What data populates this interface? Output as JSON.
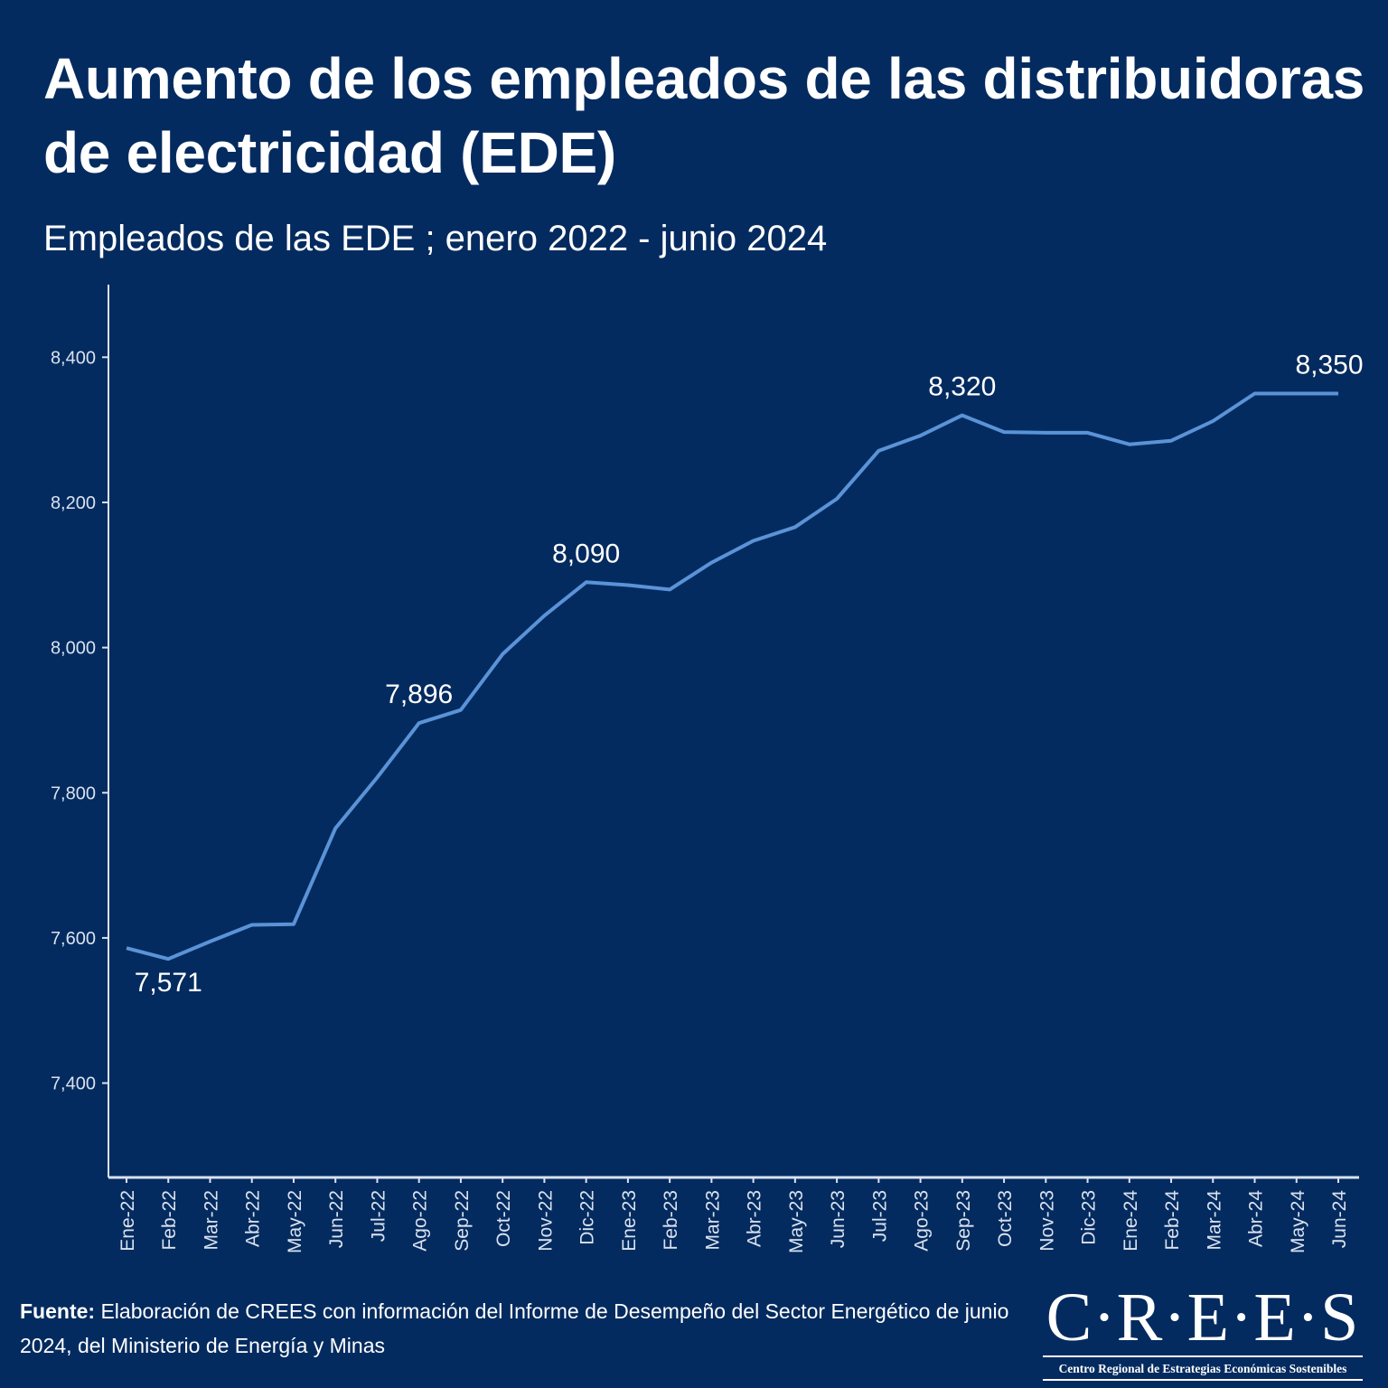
{
  "header": {
    "title": "Aumento de los empleados de las distribuidoras de electricidad (EDE)",
    "subtitle": "Empleados de las EDE ; enero 2022 - junio 2024"
  },
  "colors": {
    "background": "#042b5f",
    "line": "#5b93d8",
    "text": "#ffffff",
    "axis": "#d9e2ef"
  },
  "chart_data": {
    "type": "line",
    "title": "Aumento de los empleados de las distribuidoras de electricidad (EDE)",
    "subtitle": "Empleados de las EDE ; enero 2022 - junio 2024",
    "xlabel": "",
    "ylabel": "",
    "ylim": [
      7270,
      8500
    ],
    "yticks": [
      7400,
      7600,
      7800,
      8000,
      8200,
      8400
    ],
    "ytick_labels": [
      "7,400",
      "7,600",
      "7,800",
      "8,000",
      "8,200",
      "8,400"
    ],
    "grid": false,
    "legend": "none",
    "categories": [
      "Ene-22",
      "Feb-22",
      "Mar-22",
      "Abr-22",
      "May-22",
      "Jun-22",
      "Jul-22",
      "Ago-22",
      "Sep-22",
      "Oct-22",
      "Nov-22",
      "Dic-22",
      "Ene-23",
      "Feb-23",
      "Mar-23",
      "Abr-23",
      "May-23",
      "Jun-23",
      "Jul-23",
      "Ago-23",
      "Sep-23",
      "Oct-23",
      "Nov-23",
      "Dic-23",
      "Ene-24",
      "Feb-24",
      "Mar-24",
      "Abr-24",
      "May-24",
      "Jun-24"
    ],
    "series": [
      {
        "name": "Empleados de las EDE",
        "values": [
          7586,
          7571,
          7595,
          7618,
          7619,
          7751,
          7821,
          7896,
          7914,
          7991,
          8044,
          8090,
          8086,
          8080,
          8117,
          8147,
          8166,
          8205,
          8271,
          8292,
          8320,
          8297,
          8296,
          8296,
          8280,
          8285,
          8312,
          8350,
          8350,
          8350
        ]
      }
    ],
    "annotations": [
      {
        "index": 1,
        "label": "7,571",
        "position": "below"
      },
      {
        "index": 7,
        "label": "7,896",
        "position": "above"
      },
      {
        "index": 11,
        "label": "8,090",
        "position": "above"
      },
      {
        "index": 20,
        "label": "8,320",
        "position": "above"
      },
      {
        "index": 29,
        "label": "8,350",
        "position": "above"
      }
    ]
  },
  "footer": {
    "source_label": "Fuente:",
    "source_text": " Elaboración de CREES con información del Informe de Desempeño del Sector Energético de junio 2024, del Ministerio de Energía y Minas"
  },
  "logo": {
    "name": "C·R·E·E·S",
    "tagline": "Centro Regional de Estrategias Económicas Sostenibles"
  }
}
